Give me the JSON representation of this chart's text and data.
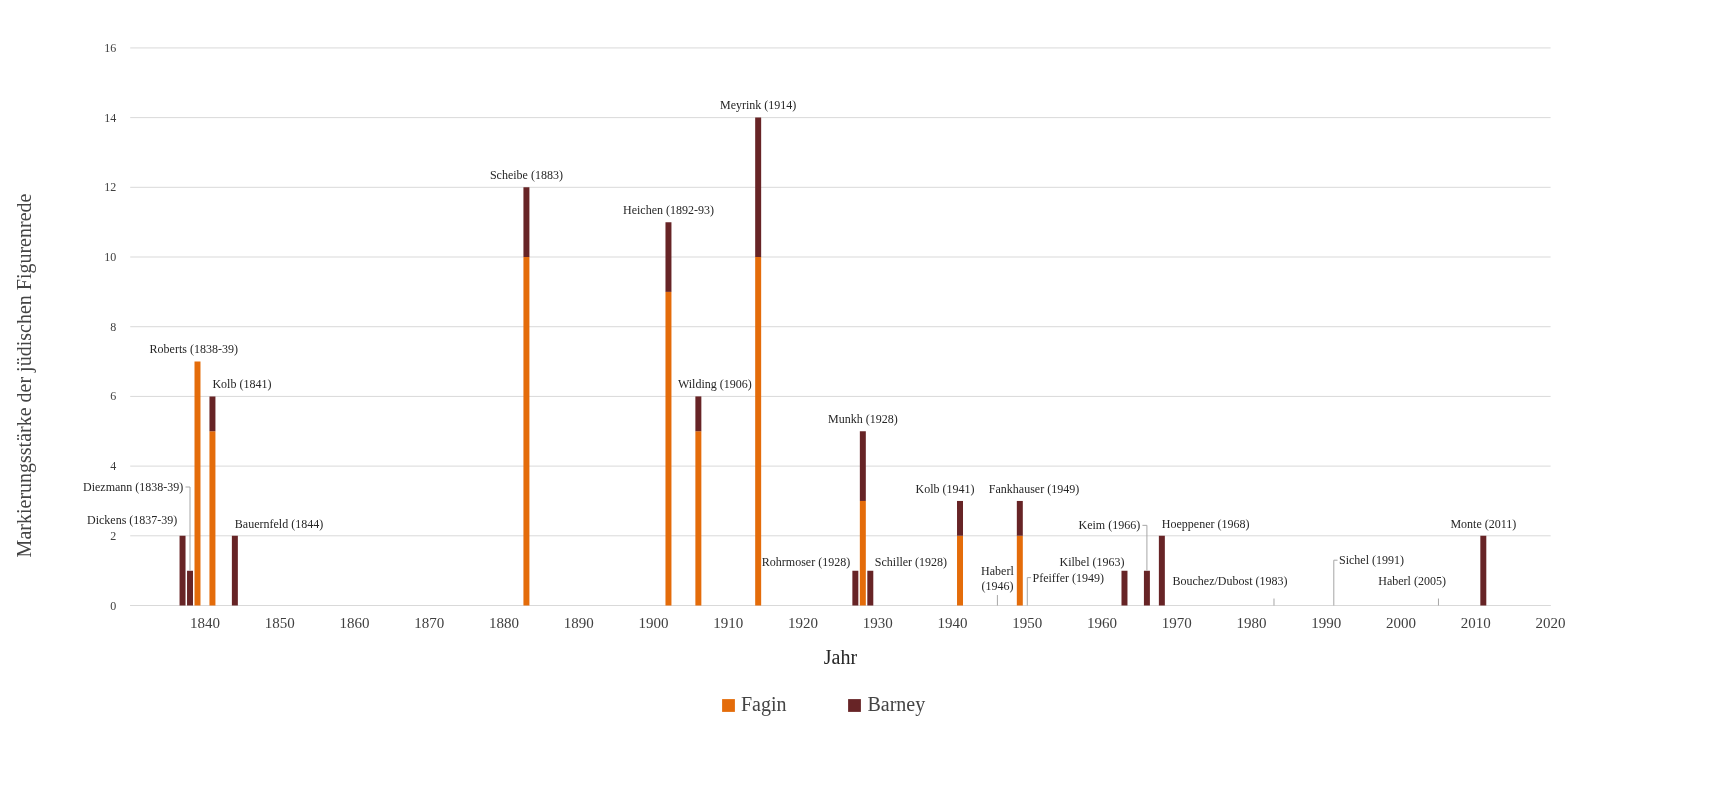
{
  "chart_data": {
    "type": "bar",
    "stacked": true,
    "xlabel": "Jahr",
    "ylabel": "Markierungsstärke der jüdischen Figurenrede",
    "x": [
      1837,
      1838,
      1839,
      1841,
      1844,
      1883,
      1902,
      1906,
      1914,
      1927,
      1928,
      1929,
      1941,
      1946,
      1949,
      1950,
      1963,
      1966,
      1968,
      1983,
      1991,
      2005,
      2011
    ],
    "series": [
      {
        "name": "Fagin",
        "color": "#e46c0a",
        "values": [
          0,
          0,
          7,
          5,
          0,
          10,
          9,
          5,
          10,
          0,
          3,
          0,
          2,
          0,
          2,
          0,
          0,
          0,
          0,
          0,
          0,
          0,
          0
        ]
      },
      {
        "name": "Barney",
        "color": "#672426",
        "values": [
          2,
          1,
          0,
          1,
          2,
          2,
          2,
          1,
          4,
          1,
          2,
          1,
          1,
          0,
          1,
          0,
          1,
          1,
          2,
          0,
          0,
          0,
          2
        ]
      }
    ],
    "xlim": [
      1830,
      2020
    ],
    "xticks": [
      1840,
      1850,
      1860,
      1870,
      1880,
      1890,
      1900,
      1910,
      1920,
      1930,
      1940,
      1950,
      1960,
      1970,
      1980,
      1990,
      2000,
      2010,
      2020
    ],
    "ylim": [
      0,
      16
    ],
    "yticks": [
      0,
      2,
      4,
      6,
      8,
      10,
      12,
      14,
      16
    ],
    "grid": "y",
    "legend": "bottom",
    "annotations": [
      {
        "text": "Dickens (1837-39)",
        "x": 1837,
        "y": 2
      },
      {
        "text": "Diezmann (1838-39)",
        "x": 1838,
        "y": 1
      },
      {
        "text": "Roberts (1838-39)",
        "x": 1839,
        "y": 7
      },
      {
        "text": "Kolb (1841)",
        "x": 1841,
        "y": 6
      },
      {
        "text": "Bauernfeld (1844)",
        "x": 1844,
        "y": 2
      },
      {
        "text": "Scheibe (1883)",
        "x": 1883,
        "y": 12
      },
      {
        "text": "Heichen (1892-93)",
        "x": 1902,
        "y": 11
      },
      {
        "text": "Wilding (1906)",
        "x": 1906,
        "y": 6
      },
      {
        "text": "Meyrink (1914)",
        "x": 1914,
        "y": 14
      },
      {
        "text": "Rohrmoser (1928)",
        "x": 1927,
        "y": 1
      },
      {
        "text": "Munkh (1928)",
        "x": 1928,
        "y": 5
      },
      {
        "text": "Schiller (1928)",
        "x": 1929,
        "y": 1
      },
      {
        "text": "Kolb (1941)",
        "x": 1941,
        "y": 3
      },
      {
        "text": "Haberl\n(1946)",
        "x": 1946,
        "y": 0
      },
      {
        "text": "Fankhauser (1949)",
        "x": 1949,
        "y": 3
      },
      {
        "text": "Pfeiffer (1949)",
        "x": 1950,
        "y": 0
      },
      {
        "text": "Kilbel (1963)",
        "x": 1963,
        "y": 1
      },
      {
        "text": "Keim (1966)",
        "x": 1966,
        "y": 1
      },
      {
        "text": "Hoeppener (1968)",
        "x": 1968,
        "y": 2
      },
      {
        "text": "Bouchez/Dubost (1983)",
        "x": 1983,
        "y": 0
      },
      {
        "text": "Sichel (1991)",
        "x": 1991,
        "y": 0
      },
      {
        "text": "Haberl (2005)",
        "x": 2005,
        "y": 0
      },
      {
        "text": "Monte (2011)",
        "x": 2011,
        "y": 2
      }
    ]
  }
}
